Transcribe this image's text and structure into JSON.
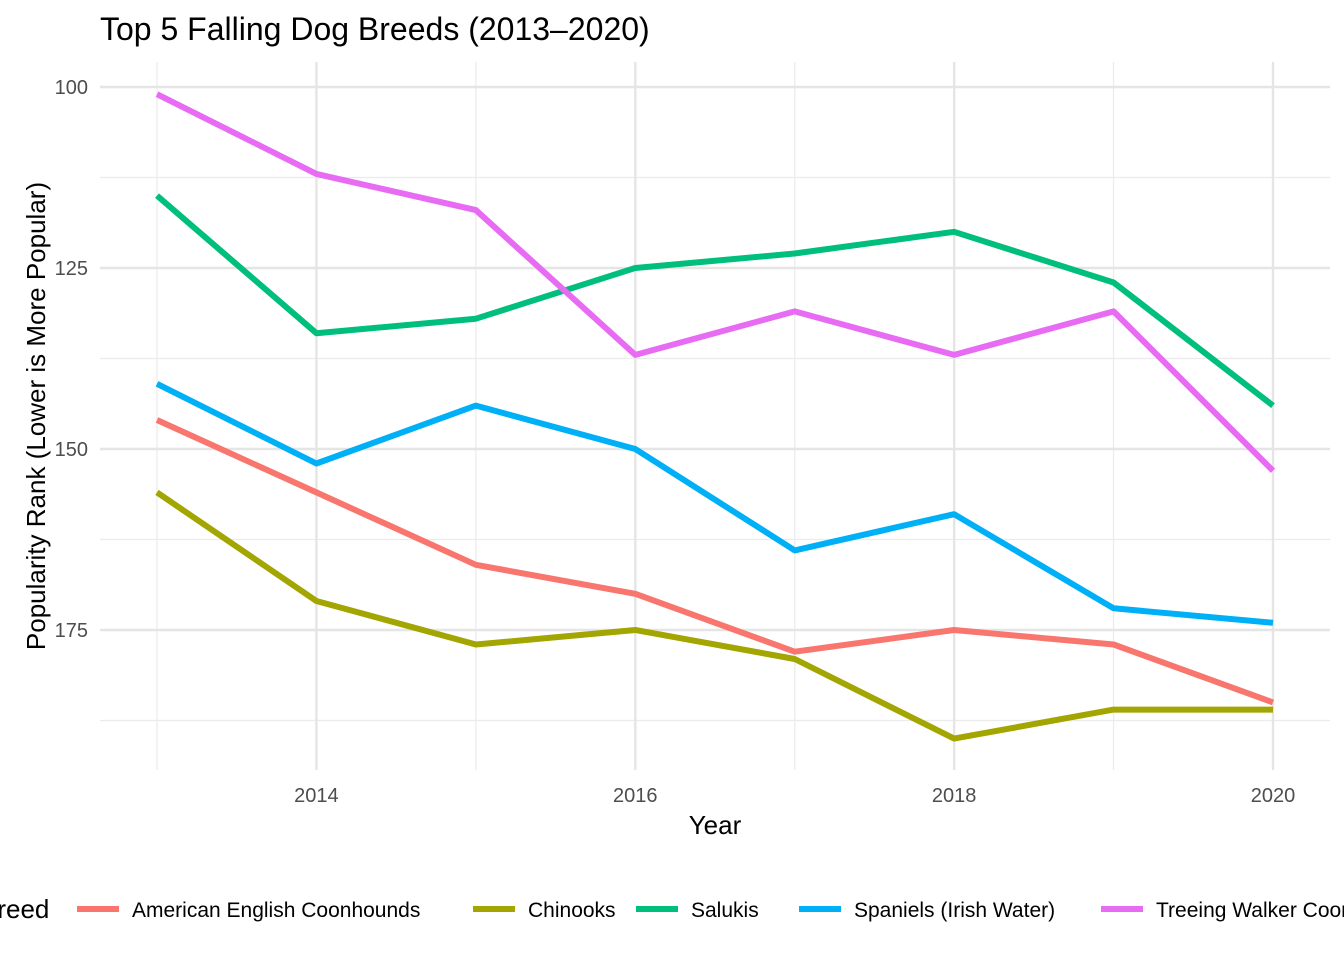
{
  "chart_data": {
    "type": "line",
    "title": "Top 5 Falling Dog Breeds (2013–2020)",
    "xlabel": "Year",
    "ylabel": "Popularity Rank (Lower is More Popular)",
    "x": [
      2013,
      2014,
      2015,
      2016,
      2017,
      2018,
      2019,
      2020
    ],
    "xticks": [
      "2014",
      "2016",
      "2018",
      "2020"
    ],
    "yticks": [
      "100",
      "125",
      "150",
      "175"
    ],
    "ylim": [
      100,
      190
    ],
    "y_reversed": true,
    "xlim": [
      2012.65,
      2020.35
    ],
    "grid": true,
    "legend": {
      "title": "Breed",
      "position": "bottom"
    },
    "series": [
      {
        "name": "American English Coonhounds",
        "color": "#F8766D",
        "values": [
          146,
          156,
          166,
          170,
          178,
          175,
          177,
          185
        ]
      },
      {
        "name": "Chinooks",
        "color": "#A3A500",
        "values": [
          156,
          171,
          177,
          175,
          179,
          190,
          186,
          186
        ]
      },
      {
        "name": "Salukis",
        "color": "#00BF7D",
        "values": [
          115,
          134,
          132,
          125,
          123,
          120,
          127,
          144
        ]
      },
      {
        "name": "Spaniels (Irish Water)",
        "color": "#00B0F6",
        "values": [
          141,
          152,
          144,
          150,
          164,
          159,
          172,
          174
        ]
      },
      {
        "name": "Treeing Walker Coonhounds",
        "color": "#E76BF3",
        "values": [
          101,
          112,
          117,
          137,
          131,
          137,
          131,
          153
        ]
      }
    ]
  }
}
